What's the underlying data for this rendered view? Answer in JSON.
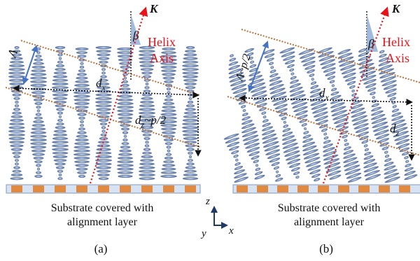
{
  "colors": {
    "lc": "#5d78a6",
    "lc_light": "#b4c4dd",
    "axis_red": "#e8121a",
    "dotted_brown": "#b8733d",
    "substrate_fill": "#d7e3f2",
    "substrate_edge": "#7f99c2",
    "substrate_pad": "#e1893f",
    "beta_wedge": "#98b2d8",
    "lambda_arrow": "#4472c4",
    "coord_arrow": "#1f3864",
    "ink": "#111111"
  },
  "panels": [
    {
      "id": "a",
      "caption": "(a)",
      "k_label": "K",
      "beta_label": "β",
      "helix_label_1": "Helix",
      "helix_label_2": "Axis",
      "lambda_label": "Λ",
      "dx_label": "d",
      "dx_sub": "x",
      "dz_label": "d",
      "dz_sub": "z",
      "dz_suffix": "~p/2",
      "substrate_line1": "Substrate covered with",
      "substrate_line2": "alignment layer"
    },
    {
      "id": "b",
      "caption": "(b)",
      "k_label": "K",
      "beta_label": "β",
      "helix_label_1": "Helix",
      "helix_label_2": "Axis",
      "lambda_label": "Λ~p/2",
      "dx_label": "d",
      "dx_sub": "x",
      "dz_label": "d",
      "dz_sub": "z",
      "dz_suffix": "",
      "substrate_line1": "Substrate covered with",
      "substrate_line2": "alignment layer"
    }
  ],
  "coords": {
    "z": "z",
    "y": "y",
    "x": "x"
  }
}
